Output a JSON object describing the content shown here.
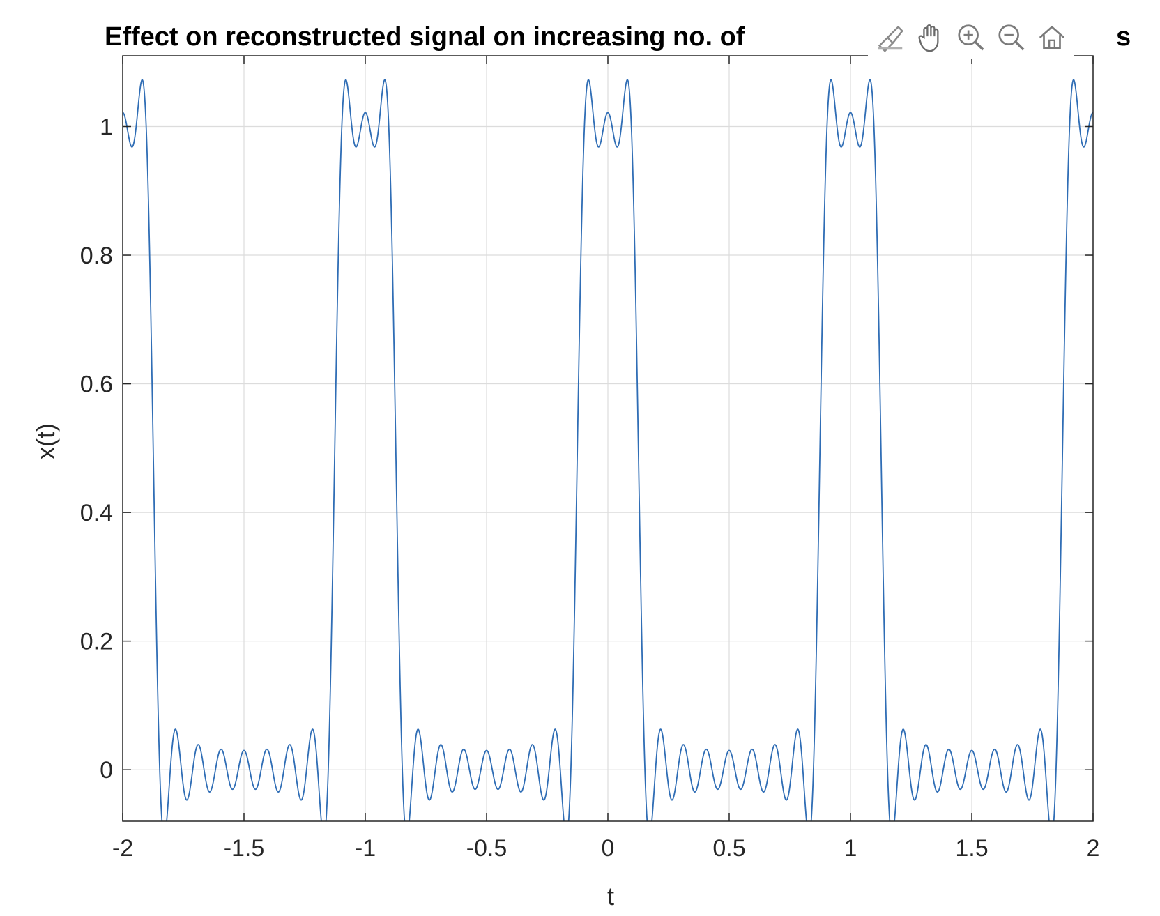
{
  "chart_data": {
    "type": "line",
    "title": "Effect on reconstructed signal on increasing no. of harmonics",
    "title_visible_prefix": "Effect on reconstructed signal on increasing no. of",
    "title_visible_suffix": "s",
    "xlabel": "t",
    "ylabel": "x(t)",
    "xlim": [
      -2,
      2
    ],
    "ylim": [
      -0.08,
      1.11
    ],
    "xticks": [
      -2,
      -1.5,
      -1,
      -0.5,
      0,
      0.5,
      1,
      1.5,
      2
    ],
    "xtick_labels": [
      "-2",
      "-1.5",
      "-1",
      "-0.5",
      "0",
      "0.5",
      "1",
      "1.5",
      "2"
    ],
    "yticks": [
      0,
      0.2,
      0.4,
      0.6,
      0.8,
      1
    ],
    "ytick_labels": [
      "0",
      "0.2",
      "0.4",
      "0.6",
      "0.8",
      "1"
    ],
    "grid": true,
    "series": [
      {
        "color": "#2f6db5",
        "function": "partial Fourier series of periodic pulse train",
        "period": 1,
        "pulse_width": 0.25,
        "pulse_center": 0,
        "harmonics": 10,
        "samples": [
          {
            "t": -1.0,
            "x": 1.06
          },
          {
            "t": -0.934,
            "x": 1.11
          },
          {
            "t": -0.866,
            "x": -0.08
          },
          {
            "t": -0.75,
            "x": 0.0
          },
          {
            "t": 0.0,
            "x": 1.06
          },
          {
            "t": 0.066,
            "x": 1.11
          },
          {
            "t": 0.134,
            "x": -0.08
          },
          {
            "t": 0.5,
            "x": 0.0
          }
        ]
      }
    ]
  },
  "toolbar": {
    "icons": [
      "brush-icon",
      "pan-hand-icon",
      "zoom-in-icon",
      "zoom-out-icon",
      "home-icon"
    ]
  }
}
